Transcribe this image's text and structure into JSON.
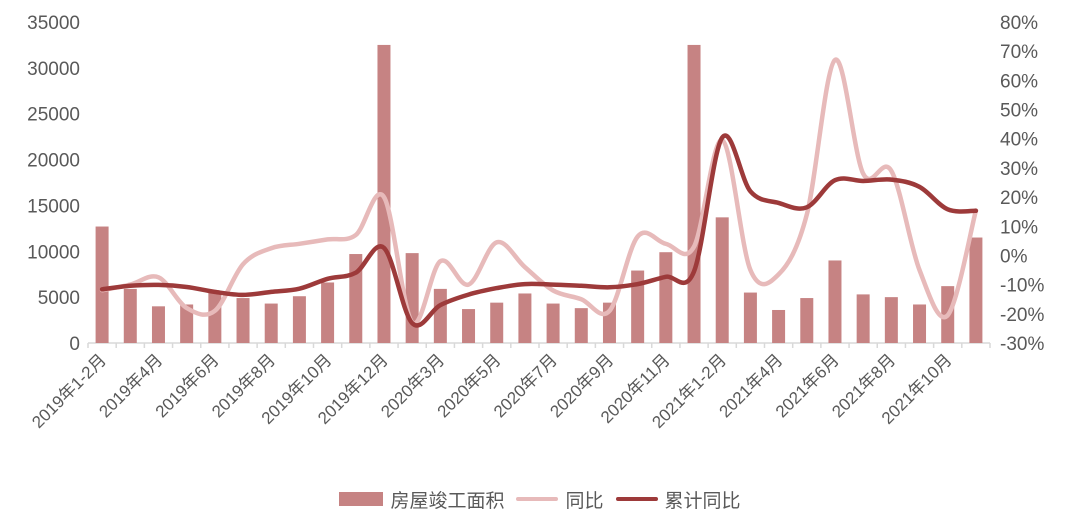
{
  "chart_data": {
    "type": "combo-bar-line",
    "title": "",
    "categories": [
      "2019年1-2月",
      "2019年3月",
      "2019年4月",
      "2019年5月",
      "2019年6月",
      "2019年7月",
      "2019年8月",
      "2019年9月",
      "2019年10月",
      "2019年11月",
      "2019年12月",
      "2020年1-2月",
      "2020年3月",
      "2020年4月",
      "2020年5月",
      "2020年6月",
      "2020年7月",
      "2020年8月",
      "2020年9月",
      "2020年10月",
      "2020年11月",
      "2020年12月",
      "2021年1-2月",
      "2021年3月",
      "2021年4月",
      "2021年5月",
      "2021年6月",
      "2021年7月",
      "2021年8月",
      "2021年9月",
      "2021年10月",
      "2021年11月"
    ],
    "x_axis": {
      "label_every": 2,
      "visible_tick_labels": [
        "2019年1-2月",
        "2019年4月",
        "2019年6月",
        "2019年8月",
        "2019年10月",
        "2019年12月",
        "2020年3月",
        "2020年5月",
        "2020年7月",
        "2020年9月",
        "2020年11月",
        "2021年1-2月",
        "2021年4月",
        "2021年6月",
        "2021年8月",
        "2021年10月"
      ]
    },
    "series": [
      {
        "name": "房屋竣工面积",
        "type": "bar",
        "axis": "left",
        "values": [
          12700,
          5900,
          4000,
          4200,
          5700,
          4900,
          4300,
          5100,
          6600,
          9700,
          32500,
          9800,
          5900,
          3700,
          4400,
          5400,
          4300,
          3800,
          4400,
          7900,
          9900,
          32500,
          13700,
          5500,
          3600,
          4900,
          9000,
          5300,
          5000,
          4200,
          6200,
          11500
        ]
      },
      {
        "name": "同比",
        "type": "line",
        "axis": "right",
        "values": [
          -11.9,
          -10.0,
          -7.5,
          -18.0,
          -19.0,
          -3.0,
          2.5,
          4.0,
          5.5,
          7.0,
          20.0,
          -22.9,
          -2.0,
          -10.0,
          4.5,
          -4.0,
          -12.0,
          -15.0,
          -19.0,
          6.5,
          4.0,
          3.0,
          39.5,
          -5.0,
          -6.5,
          14.0,
          67.0,
          28.0,
          29.0,
          -5.0,
          -20.5,
          15.4
        ]
      },
      {
        "name": "累计同比",
        "type": "line",
        "axis": "right",
        "values": [
          -11.6,
          -10.4,
          -10.1,
          -10.8,
          -12.5,
          -13.5,
          -12.5,
          -11.4,
          -8.0,
          -5.9,
          2.6,
          -23.2,
          -17.0,
          -13.4,
          -11.2,
          -9.8,
          -10.0,
          -10.4,
          -10.9,
          -9.8,
          -7.3,
          -5.5,
          40.4,
          22.0,
          18.0,
          16.5,
          25.8,
          25.5,
          26.0,
          23.5,
          15.8,
          15.3
        ]
      }
    ],
    "left_axis": {
      "min": 0,
      "max": 35000,
      "step": 5000,
      "tick_labels": [
        "0",
        "5000",
        "10000",
        "15000",
        "20000",
        "25000",
        "30000",
        "35000"
      ]
    },
    "right_axis": {
      "min": -30,
      "max": 80,
      "step": 10,
      "tick_labels": [
        "-30%",
        "-20%",
        "-10%",
        "0%",
        "10%",
        "20%",
        "30%",
        "40%",
        "50%",
        "60%",
        "70%",
        "80%"
      ]
    },
    "legend": [
      "房屋竣工面积",
      "同比",
      "累计同比"
    ],
    "colors": {
      "bar": "#c68383",
      "yoy_line": "#e7baba",
      "cum_line": "#9d3a3a",
      "axis_text": "#595959",
      "axis_line": "#d9d9d9"
    },
    "grid": "off",
    "legend_position": "bottom-center"
  }
}
